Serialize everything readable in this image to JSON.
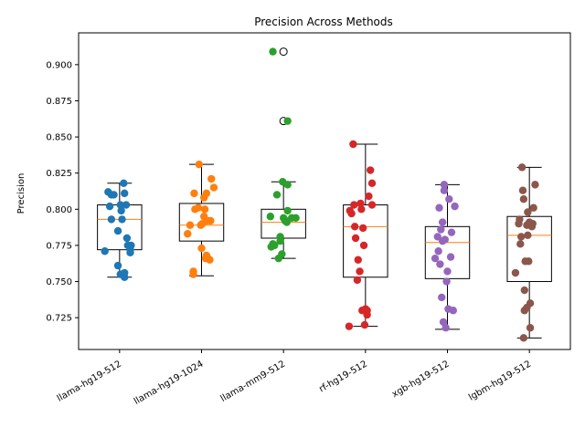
{
  "chart_data": {
    "type": "box",
    "title": "Precision Across Methods",
    "xlabel": "",
    "ylabel": "Precision",
    "ylim": [
      0.703,
      0.922
    ],
    "yticks": [
      0.725,
      0.75,
      0.775,
      0.8,
      0.825,
      0.85,
      0.875,
      0.9
    ],
    "ytick_labels": [
      "0.725",
      "0.750",
      "0.775",
      "0.800",
      "0.825",
      "0.850",
      "0.875",
      "0.900"
    ],
    "categories": [
      "llama-hg19-512",
      "llama-hg19-1024",
      "llama-mm9-512",
      "rf-hg19-512",
      "xgb-hg19-512",
      "lgbm-hg19-512"
    ],
    "colors": [
      "#1f77b4",
      "#ff7f0e",
      "#2ca02c",
      "#d62728",
      "#9467bd",
      "#8c564b"
    ],
    "median_color": "#ff7f0e",
    "grid": false,
    "boxes": [
      {
        "q1": 0.772,
        "median": 0.793,
        "q3": 0.803,
        "whisker_low": 0.753,
        "whisker_high": 0.818,
        "outliers": []
      },
      {
        "q1": 0.778,
        "median": 0.789,
        "q3": 0.804,
        "whisker_low": 0.754,
        "whisker_high": 0.831,
        "outliers": []
      },
      {
        "q1": 0.78,
        "median": 0.791,
        "q3": 0.8,
        "whisker_low": 0.766,
        "whisker_high": 0.819,
        "outliers": [
          0.909,
          0.861
        ]
      },
      {
        "q1": 0.753,
        "median": 0.788,
        "q3": 0.803,
        "whisker_low": 0.719,
        "whisker_high": 0.845,
        "outliers": []
      },
      {
        "q1": 0.752,
        "median": 0.777,
        "q3": 0.788,
        "whisker_low": 0.717,
        "whisker_high": 0.817,
        "outliers": []
      },
      {
        "q1": 0.75,
        "median": 0.782,
        "q3": 0.795,
        "whisker_low": 0.711,
        "whisker_high": 0.829,
        "outliers": []
      }
    ],
    "points": [
      [
        [
          -0.28,
          0.771
        ],
        [
          -0.24,
          0.812
        ],
        [
          -0.2,
          0.81
        ],
        [
          -0.2,
          0.793
        ],
        [
          -0.22,
          0.802
        ],
        [
          -0.17,
          0.81
        ],
        [
          -0.12,
          0.785
        ],
        [
          -0.12,
          0.761
        ],
        [
          -0.09,
          0.755
        ],
        [
          -0.08,
          0.799
        ],
        [
          -0.07,
          0.793
        ],
        [
          -0.05,
          0.818
        ],
        [
          -0.04,
          0.811
        ],
        [
          -0.04,
          0.756
        ],
        [
          -0.04,
          0.753
        ],
        [
          -0.02,
          0.803
        ],
        [
          -0.01,
          0.78
        ],
        [
          0.0,
          0.775
        ],
        [
          0.03,
          0.772
        ],
        [
          0.03,
          0.77
        ],
        [
          0.04,
          0.775
        ],
        [
          -0.09,
          0.803
        ]
      ],
      [
        [
          -0.27,
          0.783
        ],
        [
          -0.24,
          0.789
        ],
        [
          -0.2,
          0.757
        ],
        [
          -0.2,
          0.755
        ],
        [
          -0.19,
          0.811
        ],
        [
          -0.18,
          0.8
        ],
        [
          -0.14,
          0.801
        ],
        [
          -0.11,
          0.789
        ],
        [
          -0.1,
          0.773
        ],
        [
          -0.09,
          0.79
        ],
        [
          -0.07,
          0.808
        ],
        [
          -0.07,
          0.795
        ],
        [
          -0.06,
          0.8
        ],
        [
          -0.05,
          0.766
        ],
        [
          -0.04,
          0.768
        ],
        [
          -0.04,
          0.811
        ],
        [
          -0.03,
          0.792
        ],
        [
          -0.02,
          0.766
        ],
        [
          0.0,
          0.765
        ],
        [
          0.01,
          0.792
        ],
        [
          0.02,
          0.821
        ],
        [
          0.05,
          0.815
        ],
        [
          -0.13,
          0.831
        ]
      ],
      [
        [
          -0.23,
          0.909
        ],
        [
          -0.05,
          0.861
        ],
        [
          -0.26,
          0.795
        ],
        [
          -0.25,
          0.774
        ],
        [
          -0.23,
          0.776
        ],
        [
          -0.21,
          0.775
        ],
        [
          -0.18,
          0.81
        ],
        [
          -0.16,
          0.766
        ],
        [
          -0.14,
          0.781
        ],
        [
          -0.14,
          0.778
        ],
        [
          -0.12,
          0.769
        ],
        [
          -0.11,
          0.819
        ],
        [
          -0.1,
          0.794
        ],
        [
          -0.08,
          0.792
        ],
        [
          -0.07,
          0.792
        ],
        [
          -0.06,
          0.791
        ],
        [
          -0.05,
          0.799
        ],
        [
          -0.05,
          0.817
        ],
        [
          0.0,
          0.794
        ],
        [
          0.05,
          0.794
        ]
      ],
      [
        [
          -0.3,
          0.719
        ],
        [
          -0.29,
          0.799
        ],
        [
          -0.27,
          0.797
        ],
        [
          -0.25,
          0.845
        ],
        [
          -0.24,
          0.803
        ],
        [
          -0.23,
          0.788
        ],
        [
          -0.22,
          0.78
        ],
        [
          -0.2,
          0.751
        ],
        [
          -0.19,
          0.765
        ],
        [
          -0.17,
          0.757
        ],
        [
          -0.16,
          0.804
        ],
        [
          -0.15,
          0.8
        ],
        [
          -0.14,
          0.73
        ],
        [
          -0.13,
          0.787
        ],
        [
          -0.12,
          0.775
        ],
        [
          -0.11,
          0.72
        ],
        [
          -0.1,
          0.731
        ],
        [
          -0.08,
          0.727
        ],
        [
          -0.06,
          0.809
        ],
        [
          -0.04,
          0.827
        ],
        [
          -0.02,
          0.818
        ],
        [
          -0.02,
          0.803
        ],
        [
          -0.08,
          0.73
        ]
      ],
      [
        [
          -0.25,
          0.766
        ],
        [
          -0.22,
          0.781
        ],
        [
          -0.21,
          0.771
        ],
        [
          -0.2,
          0.801
        ],
        [
          -0.19,
          0.762
        ],
        [
          -0.18,
          0.786
        ],
        [
          -0.17,
          0.739
        ],
        [
          -0.16,
          0.778
        ],
        [
          -0.16,
          0.791
        ],
        [
          -0.15,
          0.722
        ],
        [
          -0.14,
          0.817
        ],
        [
          -0.14,
          0.813
        ],
        [
          -0.13,
          0.779
        ],
        [
          -0.12,
          0.718
        ],
        [
          -0.11,
          0.75
        ],
        [
          -0.1,
          0.757
        ],
        [
          -0.09,
          0.731
        ],
        [
          -0.08,
          0.807
        ],
        [
          -0.06,
          0.767
        ],
        [
          -0.05,
          0.784
        ],
        [
          -0.03,
          0.73
        ],
        [
          -0.01,
          0.802
        ]
      ],
      [
        [
          -0.27,
          0.756
        ],
        [
          -0.23,
          0.79
        ],
        [
          -0.22,
          0.793
        ],
        [
          -0.21,
          0.776
        ],
        [
          -0.2,
          0.781
        ],
        [
          -0.19,
          0.829
        ],
        [
          -0.18,
          0.813
        ],
        [
          -0.17,
          0.807
        ],
        [
          -0.16,
          0.744
        ],
        [
          -0.16,
          0.73
        ],
        [
          -0.15,
          0.764
        ],
        [
          -0.13,
          0.789
        ],
        [
          -0.12,
          0.798
        ],
        [
          -0.12,
          0.782
        ],
        [
          -0.11,
          0.764
        ],
        [
          -0.1,
          0.791
        ],
        [
          -0.09,
          0.718
        ],
        [
          -0.09,
          0.735
        ],
        [
          -0.07,
          0.788
        ],
        [
          -0.06,
          0.79
        ],
        [
          -0.05,
          0.801
        ],
        [
          -0.03,
          0.817
        ],
        [
          -0.17,
          0.711
        ],
        [
          -0.13,
          0.732
        ]
      ]
    ]
  }
}
